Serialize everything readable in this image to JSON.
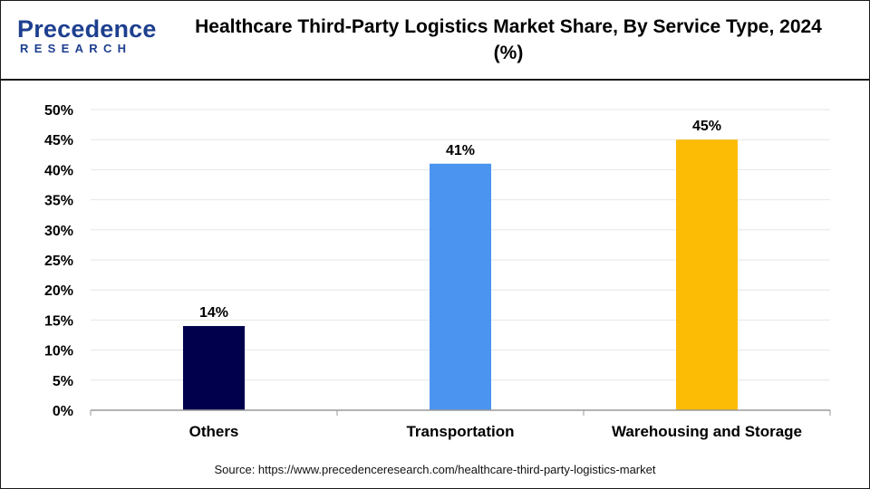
{
  "logo": {
    "line1": "Precedence",
    "line2": "RESEARCH"
  },
  "title": "Healthcare Third-Party Logistics Market Share, By Service Type, 2024 (%)",
  "source": "Source: https://www.precedenceresearch.com/healthcare-third-party-logistics-market",
  "colors": {
    "brand": "#1d3f8f",
    "grid": "#e6e6e6",
    "axis": "#9a9a9a"
  },
  "chart_data": {
    "type": "bar",
    "title": "Healthcare Third-Party Logistics Market Share, By Service Type, 2024 (%)",
    "xlabel": "",
    "ylabel": "",
    "categories": [
      "Others",
      "Transportation",
      "Warehousing and Storage"
    ],
    "values": [
      14,
      41,
      45
    ],
    "data_labels": [
      "14%",
      "41%",
      "45%"
    ],
    "colors": [
      "#00004d",
      "#4b94ef",
      "#fcbc05"
    ],
    "ylim": [
      0,
      50
    ],
    "yticks": [
      0,
      5,
      10,
      15,
      20,
      25,
      30,
      35,
      40,
      45,
      50
    ],
    "ytick_labels": [
      "0%",
      "5%",
      "10%",
      "15%",
      "20%",
      "25%",
      "30%",
      "35%",
      "40%",
      "45%",
      "50%"
    ],
    "grid": true,
    "legend": "none"
  }
}
